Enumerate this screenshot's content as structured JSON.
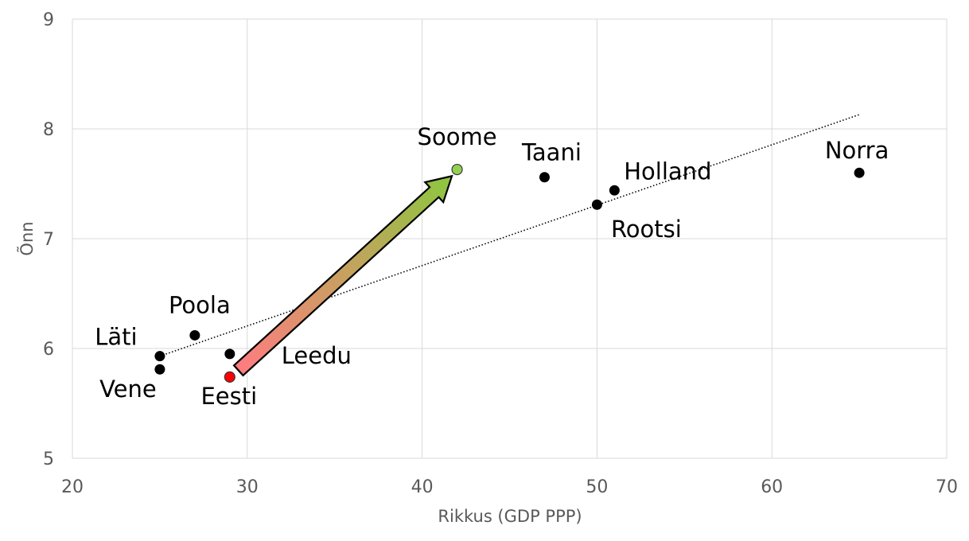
{
  "chart_data": {
    "type": "scatter",
    "xlabel": "Rikkus (GDP PPP)",
    "ylabel": "Õnn",
    "xlim": [
      20,
      70
    ],
    "ylim": [
      5,
      9
    ],
    "x_ticks": [
      "20",
      "30",
      "40",
      "50",
      "60",
      "70"
    ],
    "y_ticks": [
      "5",
      "6",
      "7",
      "8",
      "9"
    ],
    "grid": true,
    "points": [
      {
        "label": "Läti",
        "x": 25,
        "y": 5.93,
        "color": "#000000"
      },
      {
        "label": "Vene",
        "x": 25,
        "y": 5.81,
        "color": "#000000"
      },
      {
        "label": "Poola",
        "x": 27,
        "y": 6.12,
        "color": "#000000"
      },
      {
        "label": "Leedu",
        "x": 29,
        "y": 5.95,
        "color": "#000000"
      },
      {
        "label": "Eesti",
        "x": 29,
        "y": 5.74,
        "color": "#ff0000"
      },
      {
        "label": "Soome",
        "x": 42,
        "y": 7.63,
        "color": "#92d050"
      },
      {
        "label": "Taani",
        "x": 47,
        "y": 7.56,
        "color": "#000000"
      },
      {
        "label": "Rootsi",
        "x": 50,
        "y": 7.31,
        "color": "#000000"
      },
      {
        "label": "Holland",
        "x": 51,
        "y": 7.44,
        "color": "#000000"
      },
      {
        "label": "Norra",
        "x": 65,
        "y": 7.6,
        "color": "#000000"
      }
    ],
    "trendline": {
      "style": "dotted",
      "from": [
        25,
        5.93
      ],
      "to": [
        65,
        8.13
      ]
    },
    "arrow": {
      "from": [
        29.5,
        5.8
      ],
      "to": [
        41.7,
        7.57
      ],
      "gradient_start": "#ff7c80",
      "gradient_end": "#8dc63f"
    }
  }
}
